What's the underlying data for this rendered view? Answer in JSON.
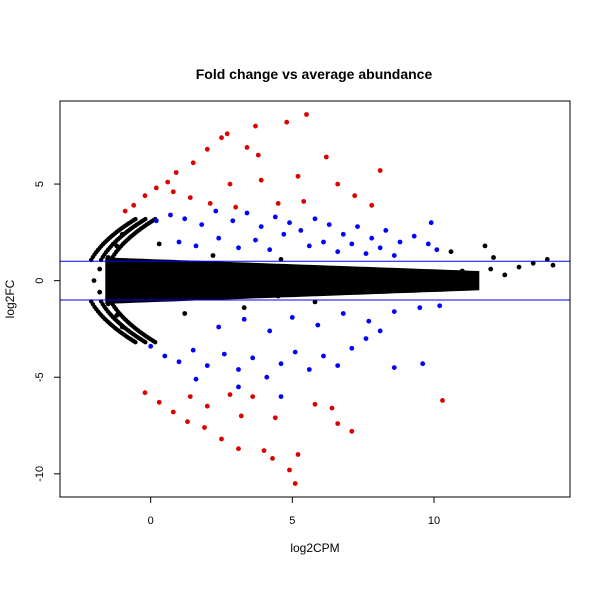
{
  "chart_data": {
    "type": "scatter",
    "title": "Fold change vs average abundance",
    "xlabel": "log2CPM",
    "ylabel": "log2FC",
    "xlim": [
      -3.2,
      14.8
    ],
    "ylim": [
      -11.2,
      9.3
    ],
    "x_ticks": [
      0,
      5,
      10
    ],
    "y_ticks": [
      -10,
      -5,
      0,
      5
    ],
    "hlines": [
      1,
      -1
    ],
    "hline_color": "#0000ff",
    "grid": false,
    "colors": {
      "not_significant": "#000000",
      "significant": "#0000ff",
      "large_fold_change": "#dd0000"
    },
    "series": [
      {
        "color_key": "large_fold_change",
        "points": [
          [
            -0.9,
            3.6
          ],
          [
            -0.6,
            3.9
          ],
          [
            -0.2,
            4.4
          ],
          [
            0.2,
            4.8
          ],
          [
            0.6,
            5.1
          ],
          [
            0.9,
            5.6
          ],
          [
            1.5,
            6.1
          ],
          [
            2.0,
            6.8
          ],
          [
            2.5,
            7.4
          ],
          [
            2.7,
            7.6
          ],
          [
            3.7,
            8.0
          ],
          [
            4.8,
            8.2
          ],
          [
            5.5,
            8.6
          ],
          [
            3.4,
            6.9
          ],
          [
            3.8,
            6.5
          ],
          [
            6.2,
            6.4
          ],
          [
            8.1,
            5.7
          ],
          [
            0.8,
            4.6
          ],
          [
            1.4,
            4.3
          ],
          [
            2.1,
            4.0
          ],
          [
            3.0,
            3.8
          ],
          [
            3.9,
            5.2
          ],
          [
            4.5,
            4.0
          ],
          [
            5.4,
            4.1
          ],
          [
            6.6,
            5.0
          ],
          [
            7.2,
            4.4
          ],
          [
            7.8,
            3.9
          ],
          [
            5.2,
            5.4
          ],
          [
            2.8,
            5.0
          ],
          [
            -0.2,
            -5.8
          ],
          [
            0.3,
            -6.3
          ],
          [
            0.8,
            -6.8
          ],
          [
            1.3,
            -7.3
          ],
          [
            1.9,
            -7.6
          ],
          [
            2.5,
            -8.2
          ],
          [
            3.1,
            -8.7
          ],
          [
            4.0,
            -8.8
          ],
          [
            4.3,
            -9.2
          ],
          [
            5.2,
            -9.0
          ],
          [
            6.6,
            -7.4
          ],
          [
            7.1,
            -7.8
          ],
          [
            10.3,
            -6.2
          ],
          [
            5.1,
            -10.5
          ],
          [
            2.0,
            -6.5
          ],
          [
            2.8,
            -5.9
          ],
          [
            3.6,
            -6.0
          ],
          [
            4.4,
            -7.1
          ],
          [
            5.8,
            -6.4
          ],
          [
            6.4,
            -6.6
          ],
          [
            3.2,
            -7.0
          ],
          [
            1.4,
            -6.0
          ],
          [
            4.9,
            -9.8
          ]
        ]
      },
      {
        "color_key": "significant",
        "points": [
          [
            0.2,
            3.1
          ],
          [
            0.7,
            3.4
          ],
          [
            1.2,
            3.2
          ],
          [
            1.8,
            2.9
          ],
          [
            2.3,
            3.6
          ],
          [
            2.9,
            3.1
          ],
          [
            3.4,
            3.5
          ],
          [
            3.9,
            2.8
          ],
          [
            4.4,
            3.3
          ],
          [
            4.9,
            3.0
          ],
          [
            5.3,
            2.6
          ],
          [
            5.8,
            3.2
          ],
          [
            6.3,
            2.9
          ],
          [
            6.8,
            2.4
          ],
          [
            7.3,
            2.8
          ],
          [
            7.8,
            2.2
          ],
          [
            8.3,
            2.6
          ],
          [
            8.8,
            2.0
          ],
          [
            9.3,
            2.3
          ],
          [
            9.8,
            1.9
          ],
          [
            10.1,
            1.6
          ],
          [
            9.9,
            3.0
          ],
          [
            1.0,
            2.0
          ],
          [
            1.6,
            1.8
          ],
          [
            2.4,
            2.2
          ],
          [
            3.1,
            1.7
          ],
          [
            3.7,
            2.1
          ],
          [
            4.2,
            1.6
          ],
          [
            4.7,
            2.4
          ],
          [
            5.6,
            1.8
          ],
          [
            6.1,
            2.0
          ],
          [
            6.6,
            1.5
          ],
          [
            7.1,
            1.9
          ],
          [
            7.6,
            1.4
          ],
          [
            8.1,
            1.7
          ],
          [
            8.6,
            1.3
          ],
          [
            0.0,
            -3.4
          ],
          [
            0.5,
            -3.9
          ],
          [
            1.0,
            -4.2
          ],
          [
            1.5,
            -3.6
          ],
          [
            2.0,
            -4.4
          ],
          [
            2.6,
            -3.8
          ],
          [
            3.1,
            -4.6
          ],
          [
            3.6,
            -4.0
          ],
          [
            4.1,
            -5.0
          ],
          [
            4.6,
            -4.3
          ],
          [
            5.1,
            -3.7
          ],
          [
            5.6,
            -4.6
          ],
          [
            6.1,
            -3.9
          ],
          [
            6.6,
            -4.4
          ],
          [
            7.1,
            -3.5
          ],
          [
            7.6,
            -3.0
          ],
          [
            8.1,
            -2.6
          ],
          [
            8.6,
            -4.5
          ],
          [
            9.6,
            -4.3
          ],
          [
            4.6,
            -6.0
          ],
          [
            3.1,
            -5.5
          ],
          [
            1.6,
            -5.1
          ],
          [
            2.4,
            -2.4
          ],
          [
            3.3,
            -2.0
          ],
          [
            4.2,
            -2.6
          ],
          [
            5.0,
            -1.9
          ],
          [
            5.9,
            -2.3
          ],
          [
            6.8,
            -1.7
          ],
          [
            7.7,
            -2.1
          ],
          [
            8.6,
            -1.6
          ],
          [
            9.5,
            -1.4
          ],
          [
            10.2,
            -1.3
          ]
        ]
      },
      {
        "color_key": "not_significant",
        "points": [
          [
            -2.0,
            0.0
          ],
          [
            -1.8,
            0.6
          ],
          [
            -1.8,
            -0.6
          ],
          [
            -1.5,
            1.2
          ],
          [
            -1.5,
            -1.2
          ],
          [
            -1.2,
            1.8
          ],
          [
            -1.2,
            -1.8
          ],
          [
            -1.0,
            2.4
          ],
          [
            -1.0,
            -2.4
          ],
          [
            -1.4,
            0.2
          ],
          [
            -0.8,
            1.0
          ],
          [
            -0.5,
            -0.7
          ],
          [
            0.0,
            0.4
          ],
          [
            0.5,
            -0.3
          ],
          [
            1.0,
            0.8
          ],
          [
            1.5,
            -0.9
          ],
          [
            2.0,
            0.2
          ],
          [
            2.5,
            -0.5
          ],
          [
            3.0,
            0.7
          ],
          [
            3.5,
            -0.2
          ],
          [
            4.0,
            0.5
          ],
          [
            4.5,
            -0.8
          ],
          [
            5.0,
            0.3
          ],
          [
            5.5,
            -0.4
          ],
          [
            6.0,
            0.6
          ],
          [
            6.5,
            -0.6
          ],
          [
            7.0,
            0.1
          ],
          [
            7.5,
            -0.3
          ],
          [
            8.0,
            0.4
          ],
          [
            8.5,
            -0.5
          ],
          [
            9.0,
            0.2
          ],
          [
            9.5,
            -0.4
          ],
          [
            10.0,
            0.3
          ],
          [
            10.5,
            -0.2
          ],
          [
            11.0,
            0.5
          ],
          [
            11.5,
            -0.1
          ],
          [
            12.0,
            0.6
          ],
          [
            12.5,
            0.3
          ],
          [
            13.0,
            0.7
          ],
          [
            13.5,
            0.9
          ],
          [
            14.0,
            1.1
          ],
          [
            14.2,
            0.8
          ],
          [
            11.8,
            1.8
          ],
          [
            12.1,
            1.2
          ],
          [
            10.6,
            1.5
          ],
          [
            0.3,
            1.9
          ],
          [
            1.2,
            -1.7
          ],
          [
            2.2,
            1.3
          ],
          [
            3.3,
            -1.4
          ],
          [
            4.6,
            1.1
          ],
          [
            5.8,
            -1.1
          ]
        ]
      }
    ],
    "cloud": {
      "color_key": "not_significant",
      "x_range": [
        -1.6,
        11.6
      ],
      "y_halfwidth": [
        1.2,
        0.5
      ]
    }
  }
}
